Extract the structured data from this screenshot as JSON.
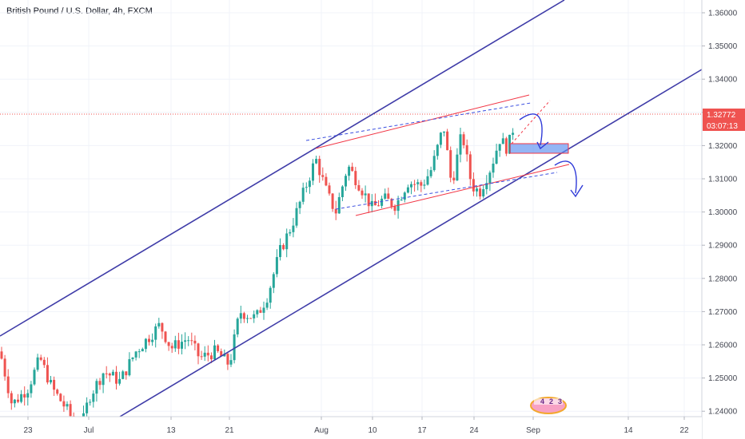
{
  "chart_data": {
    "type": "candlestick",
    "title": "British Pound / U.S. Dollar, 4h, FXCM",
    "y_ticks": [
      1.36,
      1.35,
      1.34,
      1.33,
      1.32,
      1.31,
      1.3,
      1.29,
      1.28,
      1.27,
      1.26,
      1.25,
      1.24
    ],
    "y_tick_labels": [
      "1.36000",
      "1.35000",
      "1.34000",
      "1.33000",
      "1.32000",
      "1.31000",
      "1.30000",
      "1.29000",
      "1.28000",
      "1.27000",
      "1.26000",
      "1.25000",
      "1.24000"
    ],
    "ylim": [
      1.2315,
      1.3655
    ],
    "x_tick_labels": [
      "23",
      "Jul",
      "13",
      "21",
      "Aug",
      "10",
      "17",
      "24",
      "Sep",
      "14",
      "22"
    ],
    "grid": true,
    "last_price": "1.32772",
    "countdown": "03:07:13",
    "colors": {
      "up": "#26a69a",
      "down": "#ef5350",
      "channel": "#3f3ca8",
      "wedge": "#f23645",
      "dashed": "#3b4fe0",
      "zone": "#5b8def",
      "arrow": "#2f3ad8"
    },
    "watermark_text": [
      "4",
      "2",
      "3"
    ],
    "candles": []
  }
}
